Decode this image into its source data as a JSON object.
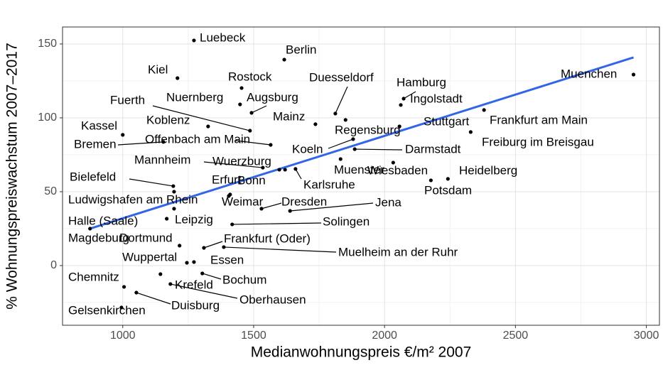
{
  "chart_data": {
    "type": "scatter",
    "xlabel": "Medianwohnungspreis €/m² 2007",
    "ylabel": "% Wohnungspreiswachstum 2007–2017",
    "xlim": [
      770,
      3050
    ],
    "ylim": [
      -40.4,
      161.5
    ],
    "xticks": [
      1000,
      1500,
      2000,
      2500,
      3000
    ],
    "yticks": [
      0,
      50,
      100,
      150
    ],
    "grid": true,
    "color": "#000000",
    "labels": [
      "Luebeck",
      "Berlin",
      "Kiel",
      "Rostock",
      "Duesseldorf",
      "Hamburg",
      "Ingolstadt",
      "Muenchen",
      "Nuernberg",
      "Augsburg",
      "Fuerth",
      "Mainz",
      "Koblenz",
      "Frankfurt am Main",
      "Stuttgart",
      "Regensburg",
      "Kassel",
      "Offenbach am Main",
      "Koeln",
      "Darmstadt",
      "Freiburg im Breisgau",
      "Bremen",
      "Mannheim",
      "Wuerzburg",
      "Karlsruhe",
      "Muenster",
      "Wiesbaden",
      "Heidelberg",
      "Potsdam",
      "Bonn",
      "Bielefeld",
      "Erfurt",
      "Ludwigshafen am Rhein",
      "Weimar",
      "Dresden",
      "Jena",
      "Leipzig",
      "Halle (Saale)",
      "Solingen",
      "Magdeburg",
      "Dortmund",
      "Frankfurt (Oder)",
      "Muelheim an der Ruhr",
      "Essen",
      "Wuppertal",
      "Chemnitz",
      "Bochum",
      "Krefeld",
      "Oberhausen",
      "Duisburg",
      "Gelsenkirchen"
    ],
    "x": [
      1272,
      1617,
      1209,
      1454,
      1812,
      2073,
      2062,
      2951,
      1448,
      1492,
      1486,
      1736,
      1326,
      2380,
      2057,
      1851,
      1000,
      1565,
      1880,
      1886,
      2329,
      1155,
      1535,
      1620,
      1660,
      1832,
      2033,
      2242,
      2177,
      1598,
      1193,
      1410,
      1196,
      1405,
      1530,
      1639,
      1196,
      1168,
      1418,
      875,
      1217,
      1310,
      1386,
      1272,
      1245,
      1005,
      1304,
      1144,
      1182,
      1052,
      995
    ],
    "y": [
      152.4,
      139.4,
      126.9,
      120.2,
      102.9,
      113,
      108.7,
      129.3,
      109.1,
      103.4,
      91.3,
      95.7,
      94.2,
      105.3,
      94.2,
      98.6,
      88.5,
      81.7,
      85.6,
      78.8,
      90.4,
      83.7,
      66.3,
      64.9,
      65.4,
      72.1,
      69.7,
      58.7,
      57.7,
      64.9,
      53.8,
      48.1,
      50,
      47.1,
      38.5,
      37,
      38.5,
      31.7,
      27.9,
      25,
      13.5,
      12,
      12.5,
      2.4,
      1.9,
      -14.4,
      -5.3,
      -5.8,
      -12.5,
      -18.3,
      -28.4
    ],
    "trend": {
      "x": [
        875,
        2951
      ],
      "y": [
        25,
        140.9
      ],
      "color": "#3366e6"
    }
  }
}
